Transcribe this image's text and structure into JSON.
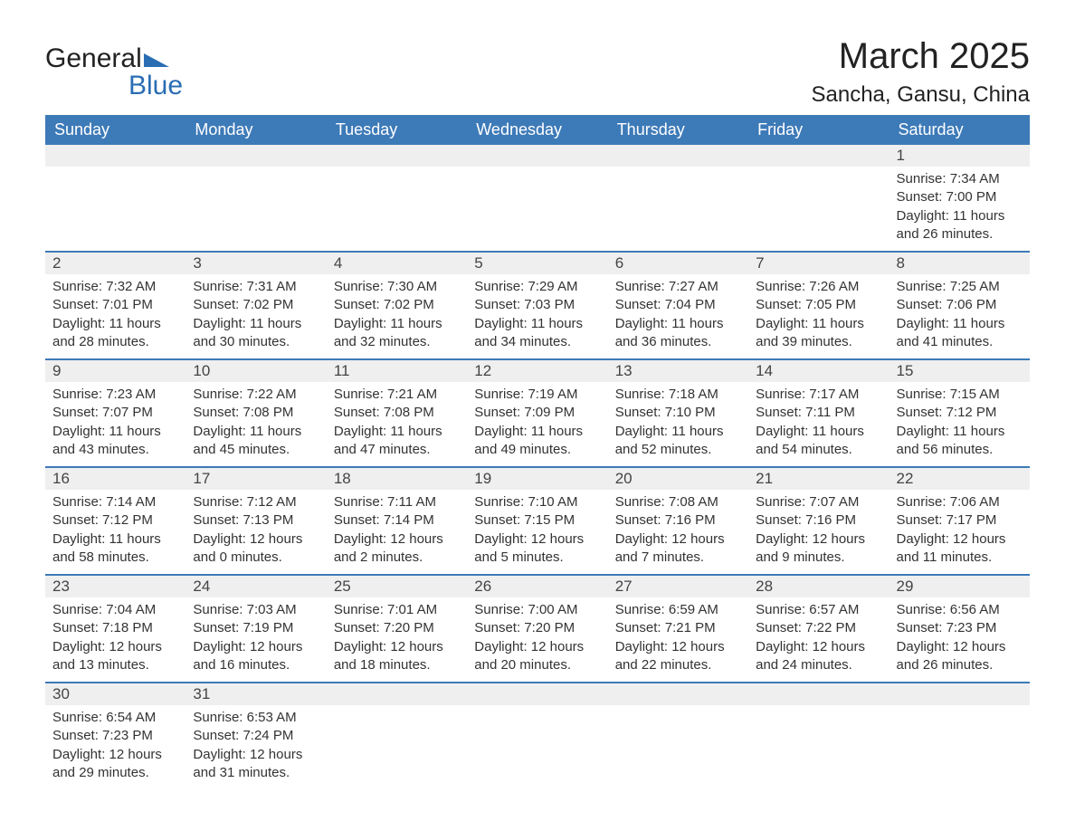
{
  "logo": {
    "word1": "General",
    "word2": "Blue"
  },
  "title": "March 2025",
  "location": "Sancha, Gansu, China",
  "colors": {
    "header_bg": "#3d7ab8",
    "header_text": "#ffffff",
    "row_separator": "#3d7ab8",
    "daynum_bg": "#efefef",
    "body_text": "#333333",
    "logo_blue": "#2a6db3"
  },
  "columns": [
    "Sunday",
    "Monday",
    "Tuesday",
    "Wednesday",
    "Thursday",
    "Friday",
    "Saturday"
  ],
  "weeks": [
    [
      {
        "day": "",
        "sunrise": "",
        "sunset": "",
        "daylight1": "",
        "daylight2": ""
      },
      {
        "day": "",
        "sunrise": "",
        "sunset": "",
        "daylight1": "",
        "daylight2": ""
      },
      {
        "day": "",
        "sunrise": "",
        "sunset": "",
        "daylight1": "",
        "daylight2": ""
      },
      {
        "day": "",
        "sunrise": "",
        "sunset": "",
        "daylight1": "",
        "daylight2": ""
      },
      {
        "day": "",
        "sunrise": "",
        "sunset": "",
        "daylight1": "",
        "daylight2": ""
      },
      {
        "day": "",
        "sunrise": "",
        "sunset": "",
        "daylight1": "",
        "daylight2": ""
      },
      {
        "day": "1",
        "sunrise": "Sunrise: 7:34 AM",
        "sunset": "Sunset: 7:00 PM",
        "daylight1": "Daylight: 11 hours",
        "daylight2": "and 26 minutes."
      }
    ],
    [
      {
        "day": "2",
        "sunrise": "Sunrise: 7:32 AM",
        "sunset": "Sunset: 7:01 PM",
        "daylight1": "Daylight: 11 hours",
        "daylight2": "and 28 minutes."
      },
      {
        "day": "3",
        "sunrise": "Sunrise: 7:31 AM",
        "sunset": "Sunset: 7:02 PM",
        "daylight1": "Daylight: 11 hours",
        "daylight2": "and 30 minutes."
      },
      {
        "day": "4",
        "sunrise": "Sunrise: 7:30 AM",
        "sunset": "Sunset: 7:02 PM",
        "daylight1": "Daylight: 11 hours",
        "daylight2": "and 32 minutes."
      },
      {
        "day": "5",
        "sunrise": "Sunrise: 7:29 AM",
        "sunset": "Sunset: 7:03 PM",
        "daylight1": "Daylight: 11 hours",
        "daylight2": "and 34 minutes."
      },
      {
        "day": "6",
        "sunrise": "Sunrise: 7:27 AM",
        "sunset": "Sunset: 7:04 PM",
        "daylight1": "Daylight: 11 hours",
        "daylight2": "and 36 minutes."
      },
      {
        "day": "7",
        "sunrise": "Sunrise: 7:26 AM",
        "sunset": "Sunset: 7:05 PM",
        "daylight1": "Daylight: 11 hours",
        "daylight2": "and 39 minutes."
      },
      {
        "day": "8",
        "sunrise": "Sunrise: 7:25 AM",
        "sunset": "Sunset: 7:06 PM",
        "daylight1": "Daylight: 11 hours",
        "daylight2": "and 41 minutes."
      }
    ],
    [
      {
        "day": "9",
        "sunrise": "Sunrise: 7:23 AM",
        "sunset": "Sunset: 7:07 PM",
        "daylight1": "Daylight: 11 hours",
        "daylight2": "and 43 minutes."
      },
      {
        "day": "10",
        "sunrise": "Sunrise: 7:22 AM",
        "sunset": "Sunset: 7:08 PM",
        "daylight1": "Daylight: 11 hours",
        "daylight2": "and 45 minutes."
      },
      {
        "day": "11",
        "sunrise": "Sunrise: 7:21 AM",
        "sunset": "Sunset: 7:08 PM",
        "daylight1": "Daylight: 11 hours",
        "daylight2": "and 47 minutes."
      },
      {
        "day": "12",
        "sunrise": "Sunrise: 7:19 AM",
        "sunset": "Sunset: 7:09 PM",
        "daylight1": "Daylight: 11 hours",
        "daylight2": "and 49 minutes."
      },
      {
        "day": "13",
        "sunrise": "Sunrise: 7:18 AM",
        "sunset": "Sunset: 7:10 PM",
        "daylight1": "Daylight: 11 hours",
        "daylight2": "and 52 minutes."
      },
      {
        "day": "14",
        "sunrise": "Sunrise: 7:17 AM",
        "sunset": "Sunset: 7:11 PM",
        "daylight1": "Daylight: 11 hours",
        "daylight2": "and 54 minutes."
      },
      {
        "day": "15",
        "sunrise": "Sunrise: 7:15 AM",
        "sunset": "Sunset: 7:12 PM",
        "daylight1": "Daylight: 11 hours",
        "daylight2": "and 56 minutes."
      }
    ],
    [
      {
        "day": "16",
        "sunrise": "Sunrise: 7:14 AM",
        "sunset": "Sunset: 7:12 PM",
        "daylight1": "Daylight: 11 hours",
        "daylight2": "and 58 minutes."
      },
      {
        "day": "17",
        "sunrise": "Sunrise: 7:12 AM",
        "sunset": "Sunset: 7:13 PM",
        "daylight1": "Daylight: 12 hours",
        "daylight2": "and 0 minutes."
      },
      {
        "day": "18",
        "sunrise": "Sunrise: 7:11 AM",
        "sunset": "Sunset: 7:14 PM",
        "daylight1": "Daylight: 12 hours",
        "daylight2": "and 2 minutes."
      },
      {
        "day": "19",
        "sunrise": "Sunrise: 7:10 AM",
        "sunset": "Sunset: 7:15 PM",
        "daylight1": "Daylight: 12 hours",
        "daylight2": "and 5 minutes."
      },
      {
        "day": "20",
        "sunrise": "Sunrise: 7:08 AM",
        "sunset": "Sunset: 7:16 PM",
        "daylight1": "Daylight: 12 hours",
        "daylight2": "and 7 minutes."
      },
      {
        "day": "21",
        "sunrise": "Sunrise: 7:07 AM",
        "sunset": "Sunset: 7:16 PM",
        "daylight1": "Daylight: 12 hours",
        "daylight2": "and 9 minutes."
      },
      {
        "day": "22",
        "sunrise": "Sunrise: 7:06 AM",
        "sunset": "Sunset: 7:17 PM",
        "daylight1": "Daylight: 12 hours",
        "daylight2": "and 11 minutes."
      }
    ],
    [
      {
        "day": "23",
        "sunrise": "Sunrise: 7:04 AM",
        "sunset": "Sunset: 7:18 PM",
        "daylight1": "Daylight: 12 hours",
        "daylight2": "and 13 minutes."
      },
      {
        "day": "24",
        "sunrise": "Sunrise: 7:03 AM",
        "sunset": "Sunset: 7:19 PM",
        "daylight1": "Daylight: 12 hours",
        "daylight2": "and 16 minutes."
      },
      {
        "day": "25",
        "sunrise": "Sunrise: 7:01 AM",
        "sunset": "Sunset: 7:20 PM",
        "daylight1": "Daylight: 12 hours",
        "daylight2": "and 18 minutes."
      },
      {
        "day": "26",
        "sunrise": "Sunrise: 7:00 AM",
        "sunset": "Sunset: 7:20 PM",
        "daylight1": "Daylight: 12 hours",
        "daylight2": "and 20 minutes."
      },
      {
        "day": "27",
        "sunrise": "Sunrise: 6:59 AM",
        "sunset": "Sunset: 7:21 PM",
        "daylight1": "Daylight: 12 hours",
        "daylight2": "and 22 minutes."
      },
      {
        "day": "28",
        "sunrise": "Sunrise: 6:57 AM",
        "sunset": "Sunset: 7:22 PM",
        "daylight1": "Daylight: 12 hours",
        "daylight2": "and 24 minutes."
      },
      {
        "day": "29",
        "sunrise": "Sunrise: 6:56 AM",
        "sunset": "Sunset: 7:23 PM",
        "daylight1": "Daylight: 12 hours",
        "daylight2": "and 26 minutes."
      }
    ],
    [
      {
        "day": "30",
        "sunrise": "Sunrise: 6:54 AM",
        "sunset": "Sunset: 7:23 PM",
        "daylight1": "Daylight: 12 hours",
        "daylight2": "and 29 minutes."
      },
      {
        "day": "31",
        "sunrise": "Sunrise: 6:53 AM",
        "sunset": "Sunset: 7:24 PM",
        "daylight1": "Daylight: 12 hours",
        "daylight2": "and 31 minutes."
      },
      {
        "day": "",
        "sunrise": "",
        "sunset": "",
        "daylight1": "",
        "daylight2": ""
      },
      {
        "day": "",
        "sunrise": "",
        "sunset": "",
        "daylight1": "",
        "daylight2": ""
      },
      {
        "day": "",
        "sunrise": "",
        "sunset": "",
        "daylight1": "",
        "daylight2": ""
      },
      {
        "day": "",
        "sunrise": "",
        "sunset": "",
        "daylight1": "",
        "daylight2": ""
      },
      {
        "day": "",
        "sunrise": "",
        "sunset": "",
        "daylight1": "",
        "daylight2": ""
      }
    ]
  ]
}
